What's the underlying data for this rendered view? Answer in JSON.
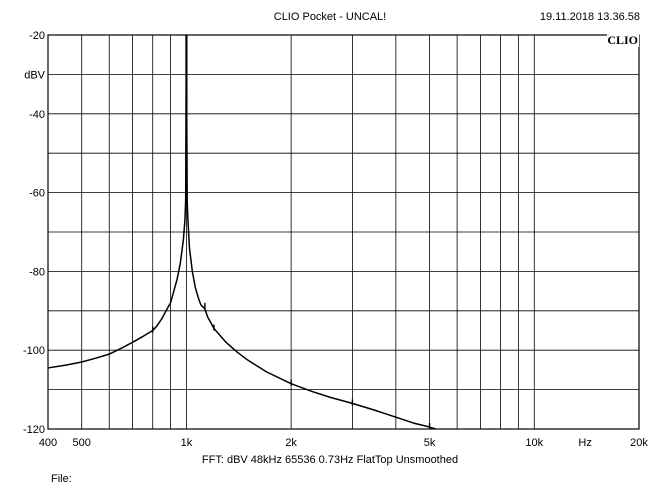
{
  "header": {
    "title": "CLIO Pocket - UNCAL!",
    "timestamp": "19.11.2018 13.36.58",
    "logo": "CLIO"
  },
  "footer": {
    "settings": "FFT:  dBV  48kHz   65536  0.73Hz  FlatTop  Unsmoothed",
    "file_label": "File:"
  },
  "chart_data": {
    "type": "line",
    "title": "CLIO Pocket - UNCAL!",
    "xlabel": "Hz",
    "ylabel": "dBV",
    "x_scale": "log",
    "xlim": [
      400,
      20000
    ],
    "ylim": [
      -120,
      -20
    ],
    "grid": true,
    "x_tick_labels": [
      {
        "value": 400,
        "label": "400"
      },
      {
        "value": 500,
        "label": "500"
      },
      {
        "value": 1000,
        "label": "1k"
      },
      {
        "value": 2000,
        "label": "2k"
      },
      {
        "value": 5000,
        "label": "5k"
      },
      {
        "value": 10000,
        "label": "10k"
      },
      {
        "value": 20000,
        "label": "20k"
      }
    ],
    "x_grid_values": [
      500,
      600,
      700,
      800,
      900,
      1000,
      2000,
      3000,
      4000,
      5000,
      6000,
      7000,
      8000,
      9000,
      10000
    ],
    "y_tick_labels": [
      {
        "value": -20,
        "label": "-20"
      },
      {
        "value": -40,
        "label": "-40"
      },
      {
        "value": -60,
        "label": "-60"
      },
      {
        "value": -80,
        "label": "-80"
      },
      {
        "value": -100,
        "label": "-100"
      },
      {
        "value": -120,
        "label": "-120"
      }
    ],
    "y_grid_values": [
      -30,
      -40,
      -50,
      -60,
      -70,
      -80,
      -90,
      -100,
      -110
    ],
    "line_color": "#000000",
    "series": [
      {
        "x": [
          400,
          450,
          500,
          550,
          600,
          650,
          700,
          750,
          800,
          820,
          850,
          880,
          900,
          920,
          940,
          960,
          980,
          990,
          995,
          998,
          1000,
          1002,
          1005,
          1010,
          1020,
          1040,
          1060,
          1080,
          1100,
          1130,
          1150,
          1200,
          1300,
          1400,
          1500,
          1700,
          2000,
          2300,
          2600,
          3000,
          3500,
          4000,
          4500,
          5000,
          5200
        ],
        "y": [
          -104.5,
          -103.8,
          -103,
          -102,
          -101,
          -99.5,
          -98,
          -96.5,
          -95,
          -94,
          -92,
          -89.5,
          -88,
          -85,
          -82,
          -78,
          -72,
          -67,
          -62,
          -40,
          -20,
          -40,
          -62,
          -67,
          -74,
          -80,
          -84,
          -86.5,
          -88.5,
          -89.5,
          -91.5,
          -94.5,
          -98,
          -100.5,
          -102.5,
          -105.5,
          -108.5,
          -110.5,
          -112,
          -113.5,
          -115.3,
          -117,
          -118.5,
          -119.5,
          -120
        ]
      }
    ],
    "spurs": [
      {
        "x": 800,
        "y": -95
      },
      {
        "x": 1130,
        "y": -89
      },
      {
        "x": 1200,
        "y": -94.5
      },
      {
        "x": 2000,
        "y": -108.5
      },
      {
        "x": 3000,
        "y": -113.5
      },
      {
        "x": 5000,
        "y": -119.5
      }
    ]
  }
}
